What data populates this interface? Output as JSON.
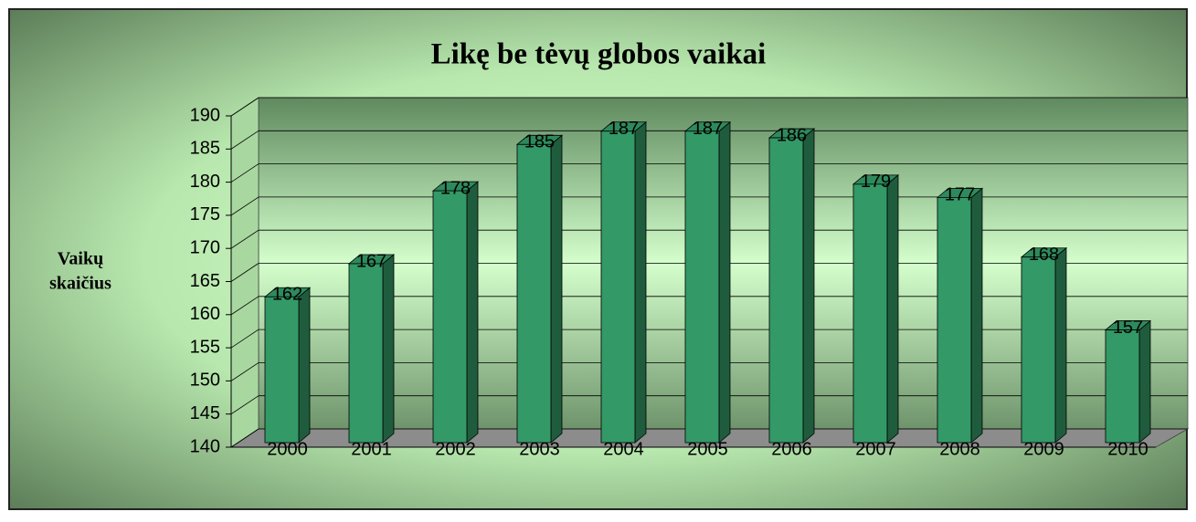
{
  "chart_data": {
    "type": "bar",
    "title": "Likę be tėvų globos vaikai",
    "y_label": [
      "Vaikų",
      "skaičius"
    ],
    "categories": [
      "2000",
      "2001",
      "2002",
      "2003",
      "2004",
      "2005",
      "2006",
      "2007",
      "2008",
      "2009",
      "2010"
    ],
    "values": [
      162,
      167,
      178,
      185,
      187,
      187,
      186,
      179,
      177,
      168,
      157
    ],
    "color": "#339966",
    "ylim": [
      140,
      190
    ],
    "yticks": [
      140,
      145,
      150,
      155,
      160,
      165,
      170,
      175,
      180,
      185,
      190
    ],
    "grid": true
  }
}
